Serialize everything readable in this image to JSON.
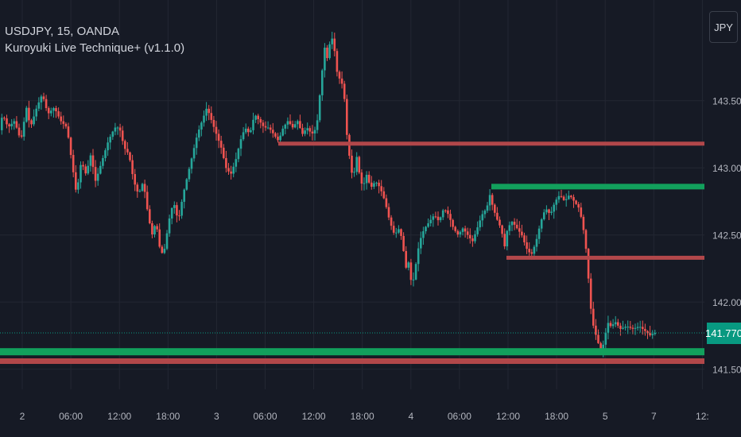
{
  "legend": {
    "symbol_line": "USDJPY, 15, OANDA",
    "indicator_line": "Kuroyuki Live Technique+ (v1.1.0)"
  },
  "currency_button": "JPY",
  "last_price": {
    "label": "141.770",
    "color": "#089981"
  },
  "colors": {
    "background": "#161a25",
    "grid": "#232733",
    "up": "#26a69a",
    "down": "#ef5350",
    "resistance": "#b2474a",
    "support": "#12a05c",
    "axis_text": "#b2b5be"
  },
  "chart_data": {
    "type": "candlestick",
    "title": "USDJPY, 15, OANDA",
    "indicator": "Kuroyuki Live Technique+ (v1.1.0)",
    "currency": "JPY",
    "ylim": [
      141.35,
      144.25
    ],
    "y_ticks": [
      "143.500",
      "143.000",
      "142.500",
      "142.000",
      "141.500"
    ],
    "x_ticks": [
      "2",
      "06:00",
      "12:00",
      "18:00",
      "3",
      "06:00",
      "12:00",
      "18:00",
      "4",
      "06:00",
      "12:00",
      "18:00",
      "5",
      "7",
      "12:"
    ],
    "path": [
      [
        0,
        143.25
      ],
      [
        5,
        143.4
      ],
      [
        12,
        143.3
      ],
      [
        20,
        143.35
      ],
      [
        28,
        143.2
      ],
      [
        35,
        143.45
      ],
      [
        40,
        143.3
      ],
      [
        48,
        143.45
      ],
      [
        55,
        143.55
      ],
      [
        62,
        143.4
      ],
      [
        70,
        143.45
      ],
      [
        78,
        143.35
      ],
      [
        86,
        143.3
      ],
      [
        92,
        143.05
      ],
      [
        98,
        142.8
      ],
      [
        104,
        143.05
      ],
      [
        110,
        142.95
      ],
      [
        116,
        143.1
      ],
      [
        122,
        142.9
      ],
      [
        130,
        143.05
      ],
      [
        138,
        143.2
      ],
      [
        146,
        143.3
      ],
      [
        152,
        143.3
      ],
      [
        158,
        143.15
      ],
      [
        164,
        143.1
      ],
      [
        170,
        142.9
      ],
      [
        176,
        142.8
      ],
      [
        182,
        142.9
      ],
      [
        188,
        142.65
      ],
      [
        193,
        142.5
      ],
      [
        198,
        142.6
      ],
      [
        204,
        142.35
      ],
      [
        209,
        142.4
      ],
      [
        214,
        142.6
      ],
      [
        220,
        142.75
      ],
      [
        226,
        142.6
      ],
      [
        232,
        142.8
      ],
      [
        238,
        142.95
      ],
      [
        244,
        143.1
      ],
      [
        250,
        143.25
      ],
      [
        256,
        143.35
      ],
      [
        262,
        143.45
      ],
      [
        268,
        143.35
      ],
      [
        274,
        143.25
      ],
      [
        280,
        143.15
      ],
      [
        286,
        143.0
      ],
      [
        292,
        142.95
      ],
      [
        298,
        143.05
      ],
      [
        304,
        143.2
      ],
      [
        310,
        143.3
      ],
      [
        316,
        143.25
      ],
      [
        322,
        143.4
      ],
      [
        328,
        143.35
      ],
      [
        334,
        143.3
      ],
      [
        340,
        143.3
      ],
      [
        346,
        143.25
      ],
      [
        352,
        143.2
      ],
      [
        358,
        143.3
      ],
      [
        364,
        143.35
      ],
      [
        370,
        143.3
      ],
      [
        376,
        143.35
      ],
      [
        382,
        143.25
      ],
      [
        388,
        143.3
      ],
      [
        394,
        143.25
      ],
      [
        400,
        143.3
      ],
      [
        405,
        143.6
      ],
      [
        410,
        143.9
      ],
      [
        414,
        143.8
      ],
      [
        418,
        144.0
      ],
      [
        422,
        143.9
      ],
      [
        426,
        143.7
      ],
      [
        430,
        143.65
      ],
      [
        434,
        143.6
      ],
      [
        438,
        143.25
      ],
      [
        442,
        143.05
      ],
      [
        446,
        142.9
      ],
      [
        450,
        143.1
      ],
      [
        454,
        142.95
      ],
      [
        458,
        142.85
      ],
      [
        463,
        142.95
      ],
      [
        468,
        142.85
      ],
      [
        474,
        142.9
      ],
      [
        480,
        142.85
      ],
      [
        486,
        142.75
      ],
      [
        492,
        142.6
      ],
      [
        498,
        142.5
      ],
      [
        504,
        142.55
      ],
      [
        508,
        142.45
      ],
      [
        512,
        142.25
      ],
      [
        516,
        142.3
      ],
      [
        520,
        142.1
      ],
      [
        524,
        142.25
      ],
      [
        528,
        142.4
      ],
      [
        532,
        142.5
      ],
      [
        536,
        142.55
      ],
      [
        542,
        142.6
      ],
      [
        548,
        142.65
      ],
      [
        554,
        142.6
      ],
      [
        560,
        142.7
      ],
      [
        566,
        142.65
      ],
      [
        572,
        142.55
      ],
      [
        578,
        142.5
      ],
      [
        584,
        142.55
      ],
      [
        590,
        142.5
      ],
      [
        596,
        142.45
      ],
      [
        602,
        142.55
      ],
      [
        608,
        142.65
      ],
      [
        614,
        142.7
      ],
      [
        618,
        142.8
      ],
      [
        622,
        142.7
      ],
      [
        628,
        142.6
      ],
      [
        632,
        142.55
      ],
      [
        637,
        142.4
      ],
      [
        640,
        142.55
      ],
      [
        646,
        142.6
      ],
      [
        652,
        142.55
      ],
      [
        658,
        142.5
      ],
      [
        664,
        142.4
      ],
      [
        670,
        142.35
      ],
      [
        676,
        142.45
      ],
      [
        682,
        142.6
      ],
      [
        688,
        142.7
      ],
      [
        694,
        142.65
      ],
      [
        700,
        142.75
      ],
      [
        706,
        142.8
      ],
      [
        712,
        142.75
      ],
      [
        718,
        142.8
      ],
      [
        724,
        142.75
      ],
      [
        730,
        142.7
      ],
      [
        734,
        142.6
      ],
      [
        738,
        142.45
      ],
      [
        741,
        142.25
      ],
      [
        744,
        142.0
      ],
      [
        747,
        141.85
      ],
      [
        750,
        141.78
      ],
      [
        754,
        141.7
      ],
      [
        758,
        141.62
      ],
      [
        762,
        141.72
      ],
      [
        766,
        141.85
      ],
      [
        770,
        141.82
      ],
      [
        776,
        141.85
      ],
      [
        782,
        141.8
      ],
      [
        790,
        141.82
      ],
      [
        798,
        141.8
      ],
      [
        806,
        141.82
      ],
      [
        814,
        141.78
      ],
      [
        820,
        141.75
      ],
      [
        824,
        141.77
      ]
    ],
    "levels": [
      {
        "kind": "resistance",
        "price": 143.18,
        "from_x": 350
      },
      {
        "kind": "support",
        "price": 142.86,
        "from_x": 618
      },
      {
        "kind": "resistance",
        "price": 142.33,
        "from_x": 637
      },
      {
        "kind": "support",
        "price": 141.63,
        "from_x": 0
      },
      {
        "kind": "resistance",
        "price": 141.56,
        "from_x": 0
      }
    ],
    "last": 141.77
  }
}
